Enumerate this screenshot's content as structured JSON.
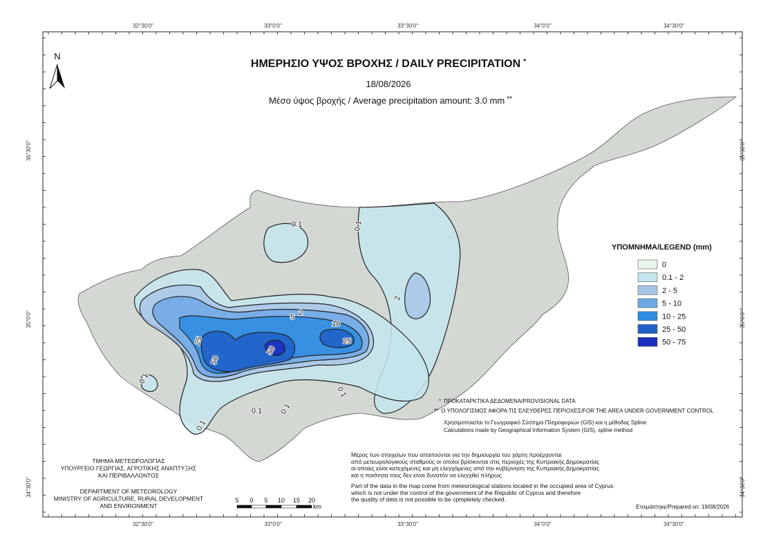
{
  "title": "ΗΜΕΡΗΣΙΟ ΥΨΟΣ ΒΡΟΧΗΣ / DAILY PRECIPITATION",
  "title_mark": "*",
  "date": "18/08/2026",
  "subtitle": "Μέσο ύψος βροχής / Average precipitation amount: 3.0 mm",
  "subtitle_mark": "**",
  "north": "N",
  "graticule": {
    "longitudes": [
      "32°30'0\"",
      "33°0'0\"",
      "33°30'0\"",
      "34°0'0\"",
      "34°30'0\""
    ],
    "latitudes": [
      "35°30'0\"",
      "35°0'0\"",
      "34°30'0\""
    ]
  },
  "legend": {
    "title": "ΥΠΟΜΝΗΜΑ/LEGEND (mm)",
    "items": [
      {
        "label": "0",
        "color": "#eaf6ea"
      },
      {
        "label": "0.1 - 2",
        "color": "#c6e6ef"
      },
      {
        "label": "2 - 5",
        "color": "#a8c6e8"
      },
      {
        "label": "5 - 10",
        "color": "#6ea8e6"
      },
      {
        "label": "10 - 25",
        "color": "#2d8be0"
      },
      {
        "label": "25 - 50",
        "color": "#1f5fc8"
      },
      {
        "label": "50 - 75",
        "color": "#1a2dbd"
      }
    ]
  },
  "contour_labels": [
    "0.1",
    "0.1",
    "2",
    "5",
    "10",
    "25",
    "25",
    "50",
    "50",
    "2",
    "0.1",
    "0.1",
    "0.1",
    "0.1",
    "0.1"
  ],
  "notes": {
    "provisional": "ΠΡΟΚΑΤΑΡΚΤΙΚΑ ΔΕΔΟΜΕΝΑ/PROVISIONAL DATA",
    "provisional_mark": "*",
    "area": "Ο ΥΠΟΛΟΓΙΣΜΟΣ ΑΦΟΡΑ ΤΙΣ ΕΛΕΥΘΕΡΕΣ ΠΕΡΙΟΧΕΣ/FOR THE AREA UNDER GOVERNMENT CONTROL",
    "area_mark": "**",
    "method": [
      "Χρησιμοποιείται το Γεωγραφικό Σύστημα Πληροφοριών (GIS) και η μέθοδος Spline",
      "Calculations made by Geographical Information System (GIS), spline method"
    ],
    "data_gr": [
      "Μέρος των στοιχείων που απαιτούνται για την δημιουργία του χάρτη προέρχονται",
      "από μετεωρολογικούς σταθμούς οι οποίοι βρίσκονται στις περιοχές της Κυπριακής Δημοκρατίας",
      "οι οποίες είναι κατεχόμενες και μη ελεγχόμενες από την κυβέρνηση της Κυπριακής Δημοκρατίας",
      "και η ποιότητα τους δεν είναι δυνατόν να ελεγχθεί πλήρως."
    ],
    "data_en": [
      "Part of the data in the map come from meteorological stations located in the occupied area of Cyprus",
      "which is not under the control of the government of the Republic of Cyprus and therefore",
      "the quality of data is not possible to be cpmpletely checked."
    ]
  },
  "ministry_gr": [
    "ΤΜΗΜΑ ΜΕΤΕΩΡΟΛΟΓΙΑΣ",
    "ΥΠΟΥΡΓΕΙΟ ΓΕΩΡΓΙΑΣ, ΑΓΡΟΤΙΚΗΣ ΑΝΑΠΤΥΞΗΣ",
    "ΚΑΙ ΠΕΡΙΒΑΛΛΟΝΤΟΣ"
  ],
  "ministry_en": [
    "DEPARTMENT OF METEOROLOGY",
    "MINISTRY OF AGRICULTURE, RURAL DEVELOPMENT",
    "AND ENVIRONMENT"
  ],
  "scale": {
    "labels": [
      "5",
      "0",
      "5",
      "10",
      "15",
      "20"
    ],
    "unit": "km"
  },
  "prepared": "Ετοιμάστηκε/Prepared on: 19/08/2026"
}
